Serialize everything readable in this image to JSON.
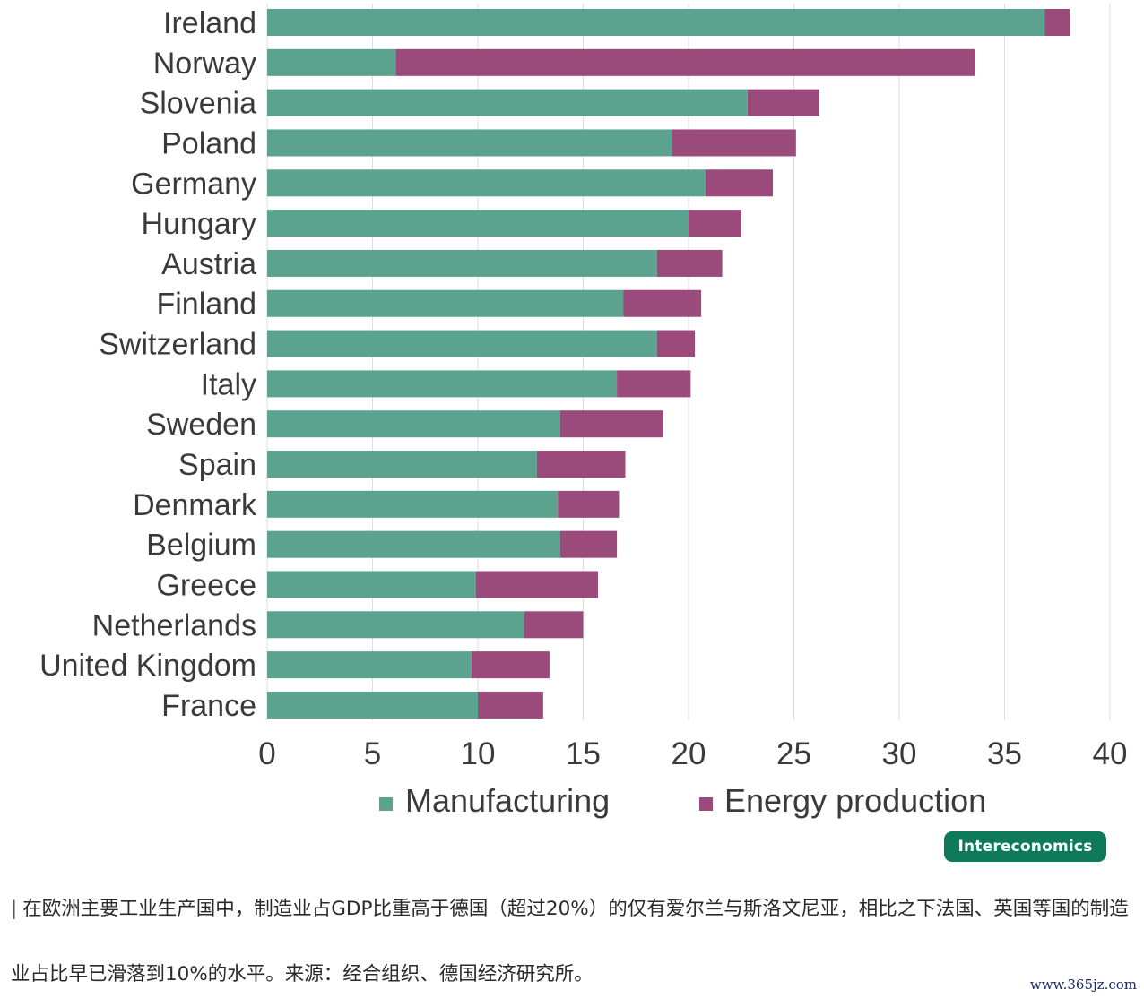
{
  "chart_data": {
    "type": "bar",
    "orientation": "horizontal",
    "stacked": true,
    "title": "",
    "xlabel": "",
    "ylabel": "",
    "xlim": [
      0,
      40
    ],
    "x_ticks": [
      "0",
      "5",
      "10",
      "15",
      "20",
      "25",
      "30",
      "35",
      "40"
    ],
    "grid": "vertical",
    "legend_position": "bottom",
    "categories": [
      "Ireland",
      "Norway",
      "Slovenia",
      "Poland",
      "Germany",
      "Hungary",
      "Austria",
      "Finland",
      "Switzerland",
      "Italy",
      "Sweden",
      "Spain",
      "Denmark",
      "Belgium",
      "Greece",
      "Netherlands",
      "United Kingdom",
      "France"
    ],
    "series": [
      {
        "name": "Manufacturing",
        "color": "#5ba28f",
        "values": [
          36.9,
          6.1,
          22.8,
          19.2,
          20.8,
          20.0,
          18.5,
          16.9,
          18.5,
          16.6,
          13.9,
          12.8,
          13.8,
          13.9,
          9.9,
          12.2,
          9.7,
          10.0
        ]
      },
      {
        "name": "Energy production",
        "color": "#9b4a7c",
        "values": [
          1.2,
          27.5,
          3.4,
          5.9,
          3.2,
          2.5,
          3.1,
          3.7,
          1.8,
          3.5,
          4.9,
          4.2,
          2.9,
          2.7,
          5.8,
          2.8,
          3.7,
          3.1
        ]
      }
    ]
  },
  "badge": {
    "label": "Intereconomics"
  },
  "caption": {
    "bar": "|",
    "text": "在欧洲主要工业生产国中，制造业占GDP比重高于德国（超过20%）的仅有爱尔兰与斯洛文尼亚，相比之下法国、英国等国的制造业占比早已滑落到10%的水平。来源：经合组织、德国经济研究所。"
  },
  "watermark": {
    "text": "www.365jz.com"
  }
}
